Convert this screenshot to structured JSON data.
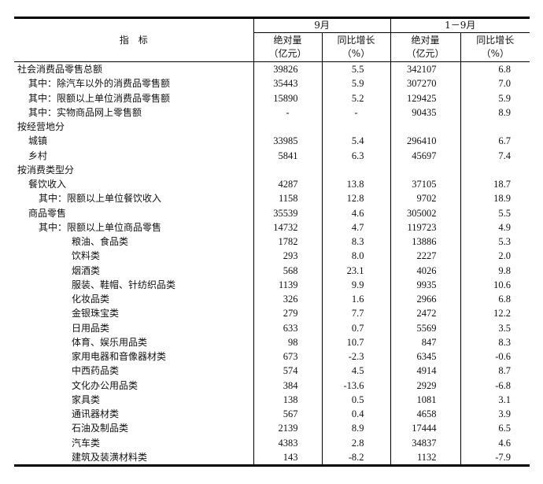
{
  "header": {
    "indicator": "指　标",
    "period_month": "9月",
    "period_ytd": "1－9月",
    "col_abs": "绝对量",
    "col_abs_unit": "（亿元）",
    "col_yoy": "同比增长",
    "col_yoy_unit": "（%）"
  },
  "rows": [
    {
      "name": "社会消费品零售总额",
      "level": 0,
      "m_abs": "39826",
      "m_yoy": "5.5",
      "y_abs": "342107",
      "y_yoy": "6.8"
    },
    {
      "name": "其中：除汽车以外的消费品零售额",
      "level": 1,
      "m_abs": "35443",
      "m_yoy": "5.9",
      "y_abs": "307270",
      "y_yoy": "7.0"
    },
    {
      "name": "其中：限额以上单位消费品零售额",
      "level": 1,
      "m_abs": "15890",
      "m_yoy": "5.2",
      "y_abs": "129425",
      "y_yoy": "5.9"
    },
    {
      "name": "其中：实物商品网上零售额",
      "level": 1,
      "m_abs": "-",
      "m_yoy": "-",
      "y_abs": "90435",
      "y_yoy": "8.9"
    },
    {
      "name": "按经营地分",
      "level": 0,
      "m_abs": "",
      "m_yoy": "",
      "y_abs": "",
      "y_yoy": ""
    },
    {
      "name": "城镇",
      "level": 1,
      "m_abs": "33985",
      "m_yoy": "5.4",
      "y_abs": "296410",
      "y_yoy": "6.7"
    },
    {
      "name": "乡村",
      "level": 1,
      "m_abs": "5841",
      "m_yoy": "6.3",
      "y_abs": "45697",
      "y_yoy": "7.4"
    },
    {
      "name": "按消费类型分",
      "level": 0,
      "m_abs": "",
      "m_yoy": "",
      "y_abs": "",
      "y_yoy": ""
    },
    {
      "name": "餐饮收入",
      "level": 1,
      "m_abs": "4287",
      "m_yoy": "13.8",
      "y_abs": "37105",
      "y_yoy": "18.7"
    },
    {
      "name": "其中：限额以上单位餐饮收入",
      "level": 2,
      "m_abs": "1158",
      "m_yoy": "12.8",
      "y_abs": "9702",
      "y_yoy": "18.9"
    },
    {
      "name": "商品零售",
      "level": 1,
      "m_abs": "35539",
      "m_yoy": "4.6",
      "y_abs": "305002",
      "y_yoy": "5.5"
    },
    {
      "name": "其中：限额以上单位商品零售",
      "level": 2,
      "m_abs": "14732",
      "m_yoy": "4.7",
      "y_abs": "119723",
      "y_yoy": "4.9"
    },
    {
      "name": "粮油、食品类",
      "level": 3,
      "m_abs": "1782",
      "m_yoy": "8.3",
      "y_abs": "13886",
      "y_yoy": "5.3"
    },
    {
      "name": "饮料类",
      "level": 3,
      "m_abs": "293",
      "m_yoy": "8.0",
      "y_abs": "2227",
      "y_yoy": "2.0"
    },
    {
      "name": "烟酒类",
      "level": 3,
      "m_abs": "568",
      "m_yoy": "23.1",
      "y_abs": "4026",
      "y_yoy": "9.8"
    },
    {
      "name": "服装、鞋帽、针纺织品类",
      "level": 3,
      "m_abs": "1139",
      "m_yoy": "9.9",
      "y_abs": "9935",
      "y_yoy": "10.6"
    },
    {
      "name": "化妆品类",
      "level": 3,
      "m_abs": "326",
      "m_yoy": "1.6",
      "y_abs": "2966",
      "y_yoy": "6.8"
    },
    {
      "name": "金银珠宝类",
      "level": 3,
      "m_abs": "279",
      "m_yoy": "7.7",
      "y_abs": "2472",
      "y_yoy": "12.2"
    },
    {
      "name": "日用品类",
      "level": 3,
      "m_abs": "633",
      "m_yoy": "0.7",
      "y_abs": "5569",
      "y_yoy": "3.5"
    },
    {
      "name": "体育、娱乐用品类",
      "level": 3,
      "m_abs": "98",
      "m_yoy": "10.7",
      "y_abs": "847",
      "y_yoy": "8.3"
    },
    {
      "name": "家用电器和音像器材类",
      "level": 3,
      "m_abs": "673",
      "m_yoy": "-2.3",
      "y_abs": "6345",
      "y_yoy": "-0.6"
    },
    {
      "name": "中西药品类",
      "level": 3,
      "m_abs": "574",
      "m_yoy": "4.5",
      "y_abs": "4914",
      "y_yoy": "8.7"
    },
    {
      "name": "文化办公用品类",
      "level": 3,
      "m_abs": "384",
      "m_yoy": "-13.6",
      "y_abs": "2929",
      "y_yoy": "-6.8"
    },
    {
      "name": "家具类",
      "level": 3,
      "m_abs": "138",
      "m_yoy": "0.5",
      "y_abs": "1081",
      "y_yoy": "3.1"
    },
    {
      "name": "通讯器材类",
      "level": 3,
      "m_abs": "567",
      "m_yoy": "0.4",
      "y_abs": "4658",
      "y_yoy": "3.9"
    },
    {
      "name": "石油及制品类",
      "level": 3,
      "m_abs": "2139",
      "m_yoy": "8.9",
      "y_abs": "17444",
      "y_yoy": "6.5"
    },
    {
      "name": "汽车类",
      "level": 3,
      "m_abs": "4383",
      "m_yoy": "2.8",
      "y_abs": "34837",
      "y_yoy": "4.6"
    },
    {
      "name": "建筑及装潢材料类",
      "level": 3,
      "m_abs": "143",
      "m_yoy": "-8.2",
      "y_abs": "1132",
      "y_yoy": "-7.9"
    }
  ]
}
